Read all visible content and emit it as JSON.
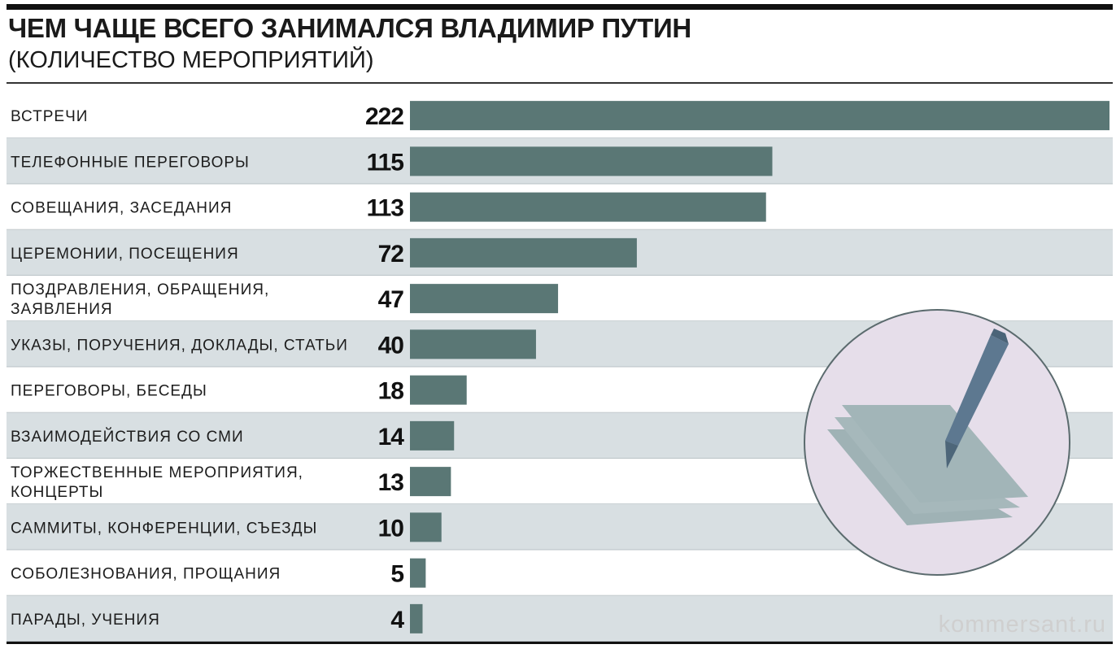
{
  "header": {
    "title": "ЧЕМ ЧАЩЕ ВСЕГО ЗАНИМАЛСЯ ВЛАДИМИР ПУТИН",
    "subtitle": "(КОЛИЧЕСТВО МЕРОПРИЯТИЙ)"
  },
  "footer": {
    "watermark": "kommersant.ru"
  },
  "colors": {
    "bar": "#5a7775",
    "row_alt": "#d8dfe2",
    "row_base": "#ffffff",
    "illustration_circle": "#e6deea",
    "illustration_paper": "#a2b5b8",
    "illustration_pen": "#5d7890"
  },
  "illustration": {
    "icon": "paper-and-pen-icon"
  },
  "chart_data": {
    "type": "bar",
    "orientation": "horizontal",
    "title": "ЧЕМ ЧАЩЕ ВСЕГО ЗАНИМАЛСЯ ВЛАДИМИР ПУТИН",
    "subtitle": "(КОЛИЧЕСТВО МЕРОПРИЯТИЙ)",
    "xlim": [
      0,
      222
    ],
    "grid": false,
    "legend": "none",
    "categories": [
      [
        "ВСТРЕЧИ"
      ],
      [
        "ТЕЛЕФОННЫЕ ПЕРЕГОВОРЫ"
      ],
      [
        "СОВЕЩАНИЯ, ЗАСЕДАНИЯ"
      ],
      [
        "ЦЕРЕМОНИИ, ПОСЕЩЕНИЯ"
      ],
      [
        "ПОЗДРАВЛЕНИЯ, ОБРАЩЕНИЯ,",
        "ЗАЯВЛЕНИЯ"
      ],
      [
        "УКАЗЫ, ПОРУЧЕНИЯ, ДОКЛАДЫ, СТАТЬИ"
      ],
      [
        "ПЕРЕГОВОРЫ, БЕСЕДЫ"
      ],
      [
        "ВЗАИМОДЕЙСТВИЯ СО СМИ"
      ],
      [
        "ТОРЖЕСТВЕННЫЕ МЕРОПРИЯТИЯ,",
        "КОНЦЕРТЫ"
      ],
      [
        "САММИТЫ, КОНФЕРЕНЦИИ, СЪЕЗДЫ"
      ],
      [
        "СОБОЛЕЗНОВАНИЯ, ПРОЩАНИЯ"
      ],
      [
        "ПАРАДЫ, УЧЕНИЯ"
      ]
    ],
    "values": [
      222,
      115,
      113,
      72,
      47,
      40,
      18,
      14,
      13,
      10,
      5,
      4
    ]
  }
}
